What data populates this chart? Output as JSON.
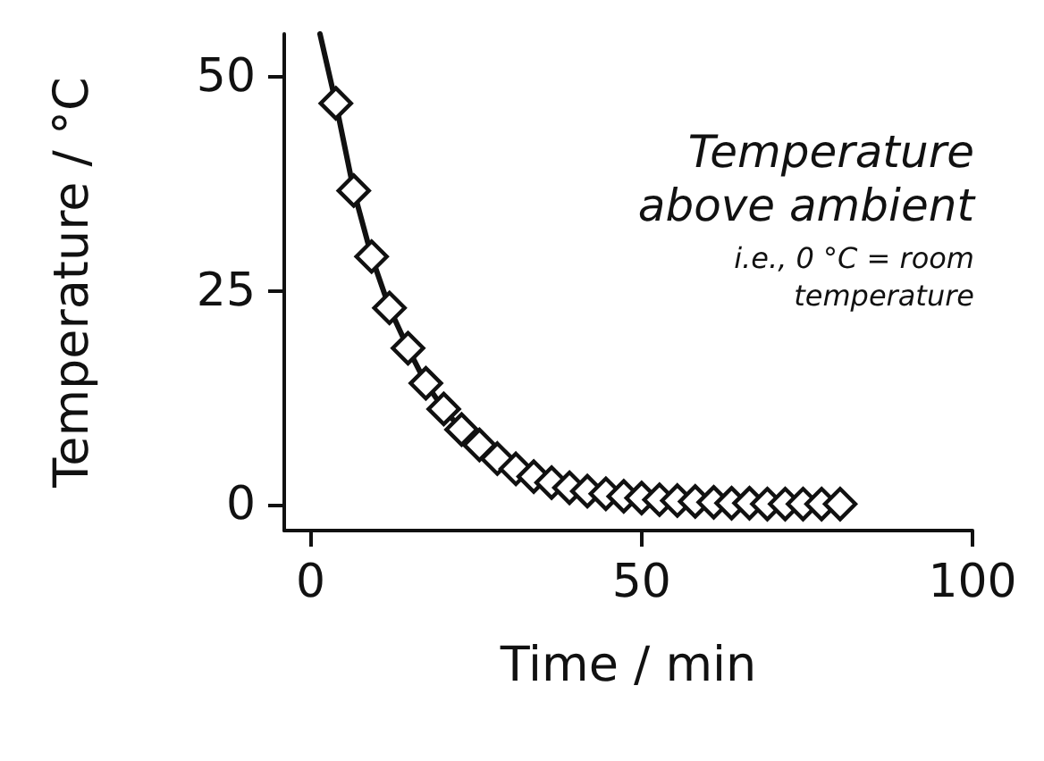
{
  "chart_data": {
    "type": "scatter",
    "xlabel": "Time / min",
    "ylabel": "Temperature / °C",
    "annotations": [
      "Temperature above ambient",
      "i.e., 0 °C = room temperature"
    ],
    "xlim": [
      -4,
      100
    ],
    "ylim": [
      -3,
      55
    ],
    "xticks": [
      0,
      50,
      100
    ],
    "yticks": [
      0,
      25,
      50
    ],
    "marker": "diamond",
    "series": [
      {
        "type": "line",
        "color": "#111111",
        "marker": "none",
        "line_style": "solid",
        "x": [
          1.4,
          3.8,
          6.5,
          9.2,
          11.9,
          14.7,
          17.4,
          20.1,
          22.8,
          25.5,
          28.2,
          31,
          33.7,
          36.4,
          39.1,
          41.8,
          44.6,
          47.3,
          50,
          52.7,
          55.4,
          58.1,
          60.9,
          63.6,
          66.3,
          69,
          71.7,
          74.4,
          77.2,
          80
        ],
        "values": [
          55,
          46.9,
          36.7,
          29,
          23,
          18.3,
          14.2,
          11.2,
          8.8,
          7,
          5.4,
          4.2,
          3.3,
          2.6,
          2,
          1.6,
          1.3,
          1,
          0.8,
          0.6,
          0.5,
          0.4,
          0.3,
          0.2,
          0.2,
          0.1,
          0.1,
          0.1,
          0.1,
          0.1
        ]
      },
      {
        "color": "#111111",
        "x": [
          3.8,
          6.5,
          9.2,
          11.9,
          14.7,
          17.4,
          20.1,
          22.8,
          25.5,
          28.2,
          31,
          33.7,
          36.4,
          39.1,
          41.8,
          44.6,
          47.3,
          50,
          52.7,
          55.4,
          58.1,
          60.9,
          63.6,
          66.3,
          69,
          71.7,
          74.4,
          77.2,
          80
        ],
        "values": [
          46.9,
          36.7,
          29,
          23,
          18.3,
          14.2,
          11.2,
          8.8,
          7,
          5.4,
          4.2,
          3.3,
          2.6,
          2,
          1.6,
          1.3,
          1,
          0.8,
          0.6,
          0.5,
          0.4,
          0.3,
          0.2,
          0.2,
          0.1,
          0.1,
          0.1,
          0.1,
          0.1
        ]
      }
    ]
  }
}
